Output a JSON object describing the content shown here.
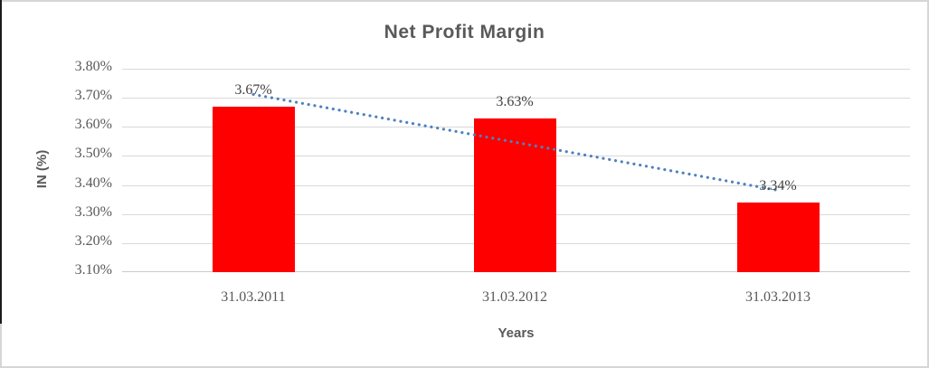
{
  "chart_data": {
    "type": "bar",
    "title": "Net Profit Margin",
    "xlabel": "Years",
    "ylabel": "IN (%)",
    "categories": [
      "31.03.2011",
      "31.03.2012",
      "31.03.2013"
    ],
    "values": [
      3.67,
      3.63,
      3.34
    ],
    "value_labels": [
      "3.67%",
      "3.63%",
      "3.34%"
    ],
    "y_ticks": [
      "3.80%",
      "3.70%",
      "3.60%",
      "3.50%",
      "3.40%",
      "3.30%",
      "3.20%",
      "3.10%"
    ],
    "ylim": [
      3.1,
      3.8
    ],
    "grid": true,
    "legend": false,
    "trendline": {
      "style": "dotted",
      "color": "#4E81BE"
    },
    "colors": {
      "bar": "#FF0000",
      "gridline": "#D9D9D9",
      "axis_line": "#C9C9C9",
      "title_text": "#595959",
      "tick_text": "#595959",
      "data_label_text": "#404040"
    }
  }
}
